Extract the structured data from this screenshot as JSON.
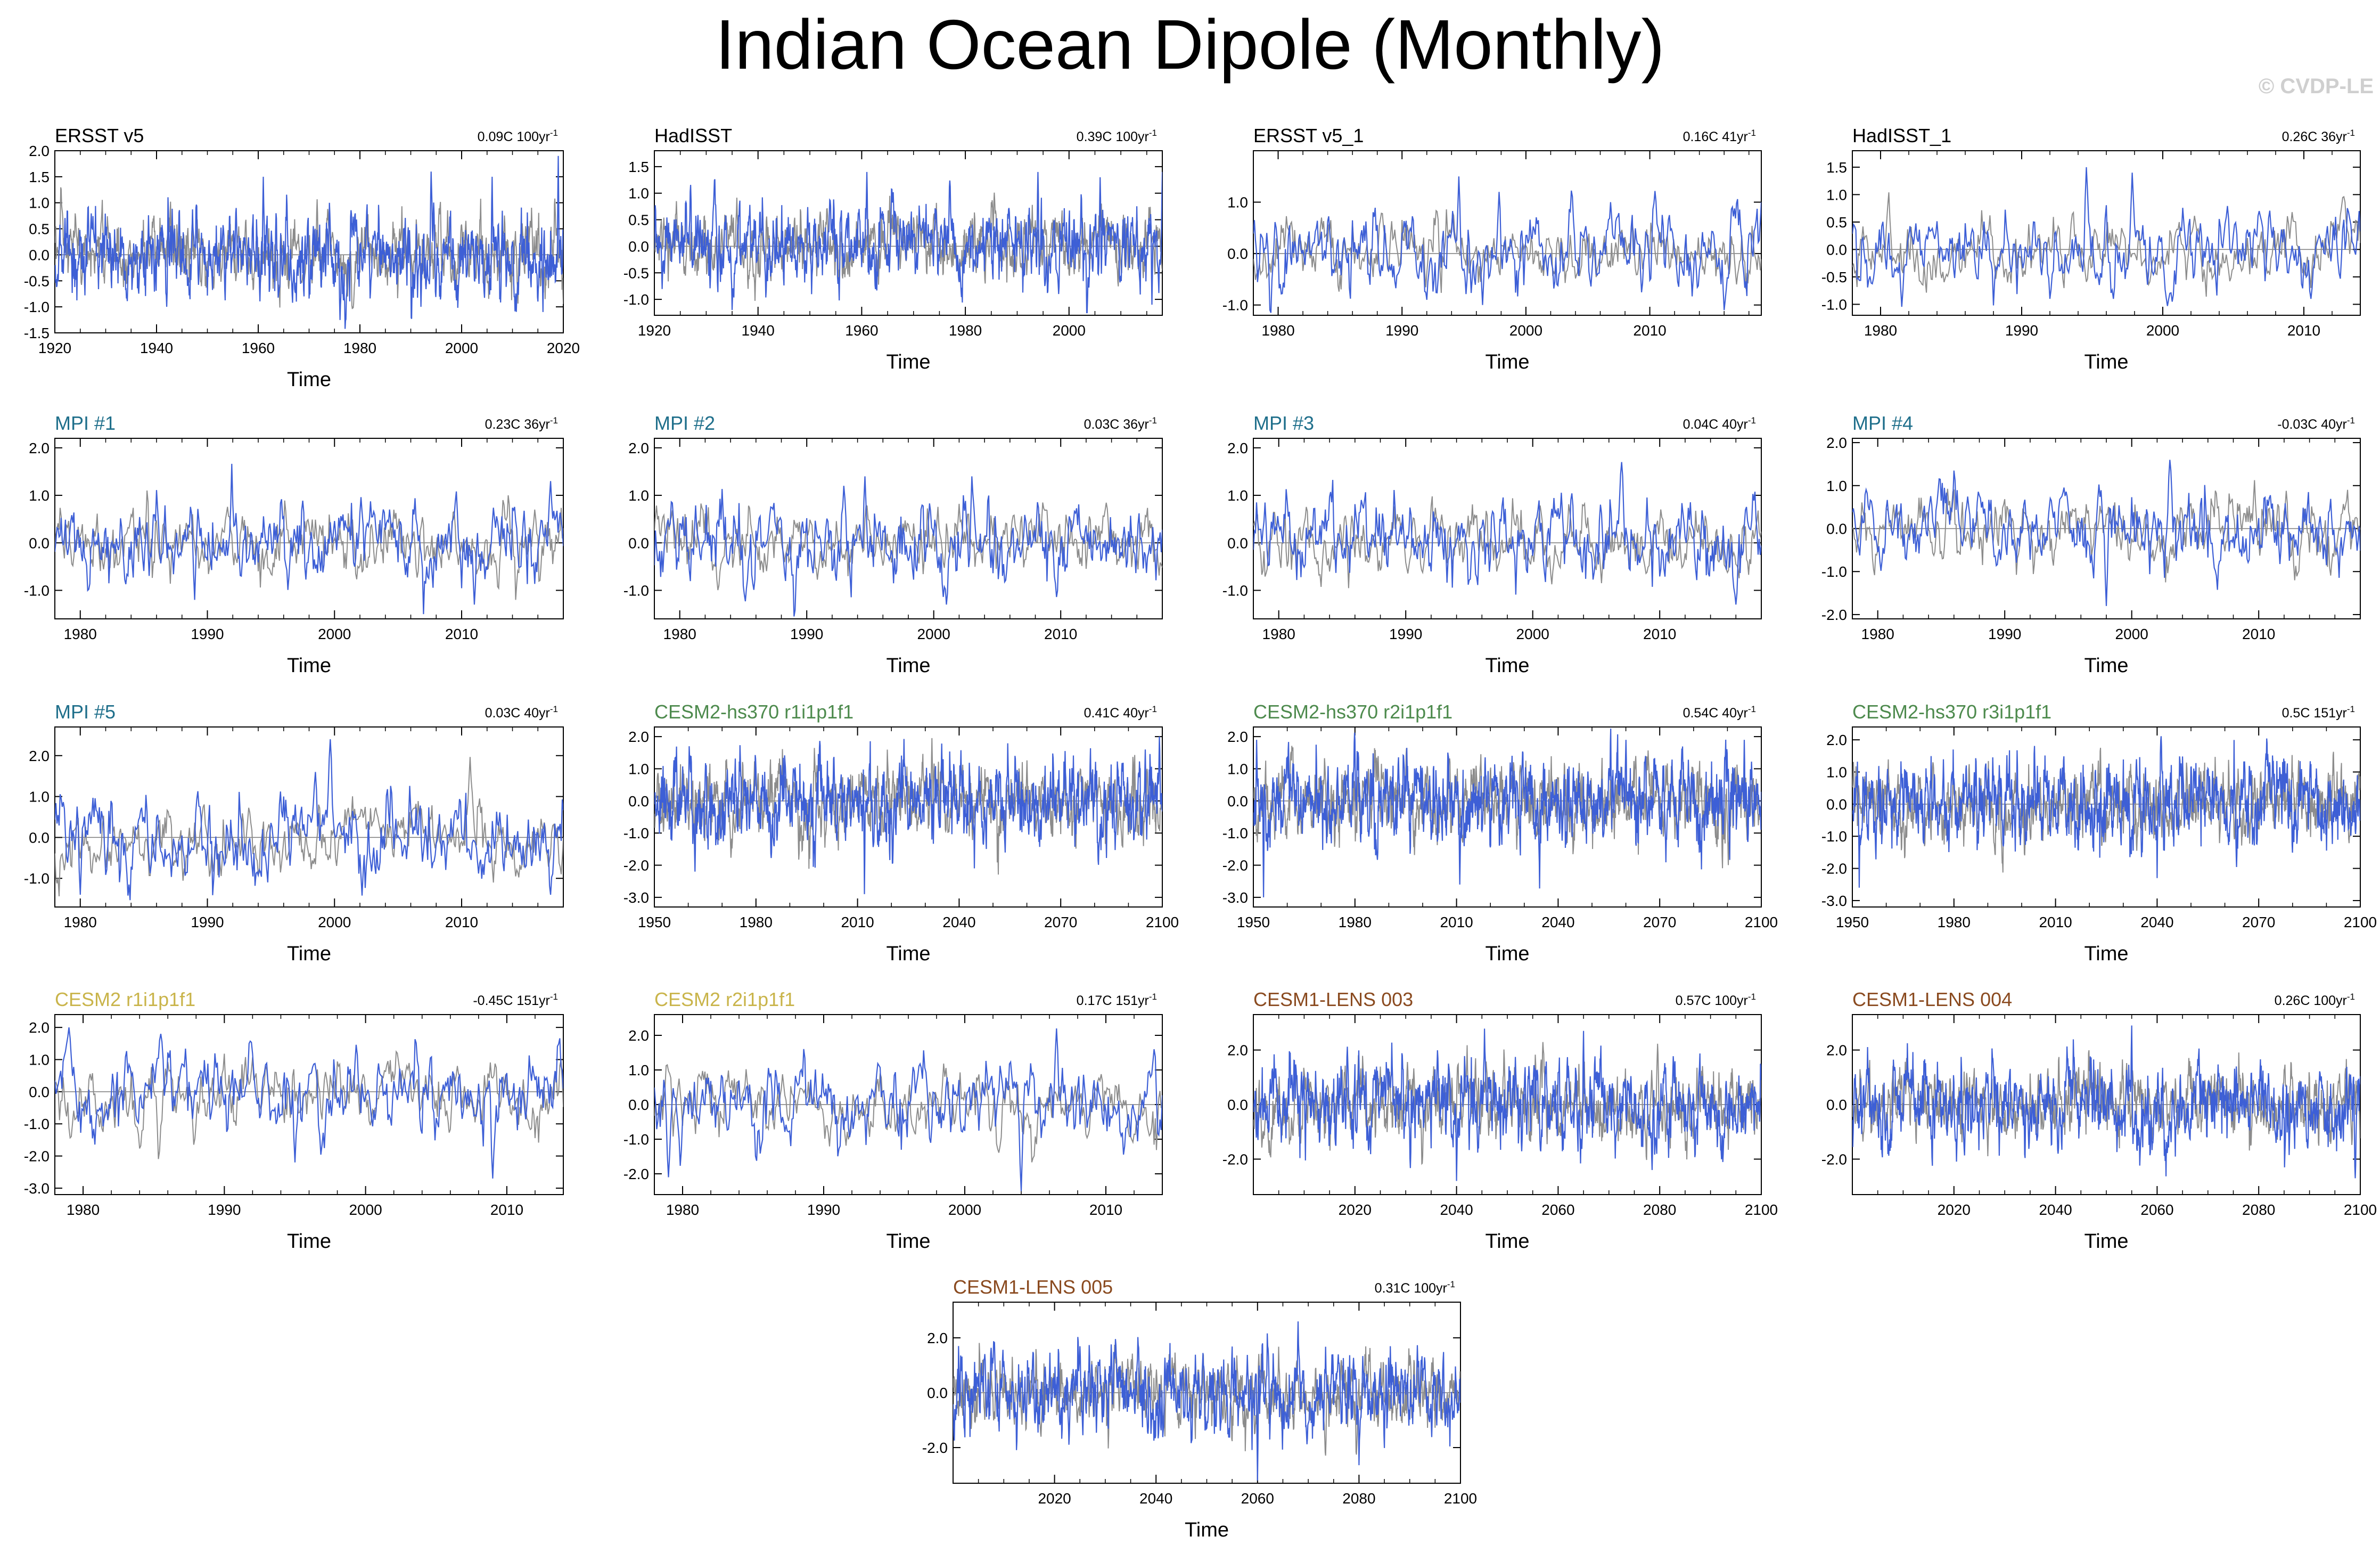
{
  "title": "Indian Ocean Dipole (Monthly)",
  "watermark": "© CVDP-LE",
  "colors": {
    "model_line": "#3d5fd6",
    "obs_line": "#8c8c8c",
    "zero_line": "#7a7a7a"
  },
  "chart_data": [
    {
      "type": "line",
      "title": "ERSST v5",
      "title_color": "#000000",
      "trend": "0.09C 100yr",
      "trend_exp": "-1",
      "xlabel": "Time",
      "xlim": [
        1920,
        2020
      ],
      "xticks": [
        1920,
        1940,
        1960,
        1980,
        2000,
        2020
      ],
      "ylim": [
        -1.5,
        2.0
      ],
      "yticks": [
        "2.0",
        "1.5",
        "1.0",
        "0.5",
        "0.0",
        "-0.5",
        "-1.0",
        "-1.5"
      ],
      "peaks": [
        [
          1961,
          1.5
        ],
        [
          1994,
          1.6
        ],
        [
          2006,
          1.5
        ],
        [
          2019,
          1.9
        ]
      ],
      "troughs": [
        [
          1942,
          -1.0
        ],
        [
          1992,
          -1.0
        ],
        [
          2016,
          -1.1
        ]
      ]
    },
    {
      "type": "line",
      "title": "HadISST",
      "title_color": "#000000",
      "trend": "0.39C 100yr",
      "trend_exp": "-1",
      "xlabel": "Time",
      "xlim": [
        1920,
        2018
      ],
      "xticks": [
        1920,
        1940,
        1960,
        1980,
        2000
      ],
      "ylim": [
        -1.3,
        1.8
      ],
      "yticks": [
        "1.5",
        "1.0",
        "0.5",
        "0.0",
        "-0.5",
        "-1.0"
      ],
      "peaks": [
        [
          1961,
          1.4
        ],
        [
          1994,
          1.4
        ],
        [
          2006,
          1.3
        ],
        [
          2019,
          1.4
        ]
      ],
      "troughs": [
        [
          1935,
          -1.2
        ],
        [
          1998,
          -0.9
        ],
        [
          2016,
          -1.1
        ]
      ]
    },
    {
      "type": "line",
      "title": "ERSST v5_1",
      "title_color": "#000000",
      "trend": "0.16C 41yr",
      "trend_exp": "-1",
      "xlabel": "Time",
      "xlim": [
        1978,
        2019
      ],
      "xticks": [
        1980,
        1990,
        2000,
        2010
      ],
      "ylim": [
        -1.2,
        2.0
      ],
      "yticks": [
        "1.0",
        "0.0",
        "-1.0"
      ],
      "peaks": [
        [
          1994.6,
          1.5
        ],
        [
          1997.8,
          1.2
        ],
        [
          2006.8,
          1.0
        ],
        [
          2019,
          1.0
        ]
      ],
      "troughs": [
        [
          1992,
          -0.9
        ],
        [
          1996.5,
          -1.0
        ],
        [
          2016,
          -1.1
        ]
      ]
    },
    {
      "type": "line",
      "title": "HadISST_1",
      "title_color": "#000000",
      "trend": "0.26C 36yr",
      "trend_exp": "-1",
      "xlabel": "Time",
      "xlim": [
        1978,
        2014
      ],
      "xticks": [
        1980,
        1990,
        2000,
        2010
      ],
      "ylim": [
        -1.2,
        1.8
      ],
      "yticks": [
        "1.5",
        "1.0",
        "0.5",
        "0.0",
        "-0.5",
        "-1.0"
      ],
      "peaks": [
        [
          1994.6,
          1.5
        ],
        [
          1997.8,
          1.4
        ],
        [
          2006.8,
          0.7
        ]
      ],
      "troughs": [
        [
          1992,
          -0.9
        ],
        [
          1996.5,
          -0.9
        ],
        [
          2010.5,
          -0.9
        ]
      ]
    },
    {
      "type": "line",
      "title": "MPI #1",
      "title_color": "#1f6f8b",
      "trend": "0.23C 36yr",
      "trend_exp": "-1",
      "xlabel": "Time",
      "xlim": [
        1978,
        2018
      ],
      "xticks": [
        1980,
        1990,
        2000,
        2010
      ],
      "ylim": [
        -1.6,
        2.2
      ],
      "yticks": [
        "2.0",
        "1.0",
        "0.0",
        "-1.0"
      ],
      "peaks": [
        [
          2017,
          1.3
        ]
      ],
      "troughs": [
        [
          1989,
          -1.2
        ],
        [
          2011,
          -1.3
        ]
      ]
    },
    {
      "type": "line",
      "title": "MPI #2",
      "title_color": "#1f6f8b",
      "trend": "0.03C 36yr",
      "trend_exp": "-1",
      "xlabel": "Time",
      "xlim": [
        1978,
        2018
      ],
      "xticks": [
        1980,
        1990,
        2000,
        2010
      ],
      "ylim": [
        -1.6,
        2.2
      ],
      "yticks": [
        "2.0",
        "1.0",
        "0.0",
        "-1.0"
      ],
      "peaks": [
        [
          1994.6,
          1.4
        ],
        [
          2003,
          1.4
        ]
      ],
      "troughs": [
        [
          2001,
          -1.3
        ]
      ]
    },
    {
      "type": "line",
      "title": "MPI #3",
      "title_color": "#1f6f8b",
      "trend": "0.04C 40yr",
      "trend_exp": "-1",
      "xlabel": "Time",
      "xlim": [
        1978,
        2018
      ],
      "xticks": [
        1980,
        1990,
        2000,
        2010
      ],
      "ylim": [
        -1.6,
        2.2
      ],
      "yticks": [
        "2.0",
        "1.0",
        "0.0",
        "-1.0"
      ],
      "peaks": [
        [
          2007,
          1.7
        ]
      ],
      "troughs": [
        [
          2016,
          -1.3
        ]
      ]
    },
    {
      "type": "line",
      "title": "MPI #4",
      "title_color": "#1f6f8b",
      "trend": "-0.03C 40yr",
      "trend_exp": "-1",
      "xlabel": "Time",
      "xlim": [
        1978,
        2018
      ],
      "xticks": [
        1980,
        1990,
        2000,
        2010
      ],
      "ylim": [
        -2.1,
        2.1
      ],
      "yticks": [
        "2.0",
        "1.0",
        "0.0",
        "-1.0",
        "-2.0"
      ],
      "peaks": [
        [
          2003,
          1.6
        ]
      ],
      "troughs": [
        [
          1998,
          -1.8
        ]
      ]
    },
    {
      "type": "line",
      "title": "MPI #5",
      "title_color": "#1f6f8b",
      "trend": "0.03C 40yr",
      "trend_exp": "-1",
      "xlabel": "Time",
      "xlim": [
        1978,
        2018
      ],
      "xticks": [
        1980,
        1990,
        2000,
        2010
      ],
      "ylim": [
        -1.7,
        2.7
      ],
      "yticks": [
        "2.0",
        "1.0",
        "0.0",
        "-1.0"
      ],
      "peaks": [
        [
          1999.7,
          2.4
        ],
        [
          1998.5,
          1.6
        ]
      ],
      "troughs": [
        [
          1980,
          -1.4
        ],
        [
          2017,
          -1.4
        ]
      ]
    },
    {
      "type": "line",
      "title": "CESM2-hs370 r1i1p1f1",
      "title_color": "#4d8a4d",
      "trend": "0.41C 40yr",
      "trend_exp": "-1",
      "xlabel": "Time",
      "xlim": [
        1950,
        2100
      ],
      "xticks": [
        1950,
        1980,
        2010,
        2040,
        2070,
        2100
      ],
      "ylim": [
        -3.3,
        2.3
      ],
      "yticks": [
        "2.0",
        "1.0",
        "0.0",
        "-1.0",
        "-2.0",
        "-3.0"
      ],
      "peaks": [
        [
          2095,
          1.6
        ]
      ],
      "troughs": [
        [
          2012,
          -2.9
        ],
        [
          1962,
          -2.2
        ]
      ]
    },
    {
      "type": "line",
      "title": "CESM2-hs370 r2i1p1f1",
      "title_color": "#4d8a4d",
      "trend": "0.54C 40yr",
      "trend_exp": "-1",
      "xlabel": "Time",
      "xlim": [
        1950,
        2100
      ],
      "xticks": [
        1950,
        1980,
        2010,
        2040,
        2070,
        2100
      ],
      "ylim": [
        -3.3,
        2.3
      ],
      "yticks": [
        "2.0",
        "1.0",
        "0.0",
        "-1.0",
        "-2.0",
        "-3.0"
      ],
      "peaks": [
        [
          1951,
          1.9
        ],
        [
          2060,
          1.9
        ],
        [
          2095,
          1.9
        ]
      ],
      "troughs": [
        [
          1953,
          -3.0
        ],
        [
          2011,
          -2.6
        ]
      ]
    },
    {
      "type": "line",
      "title": "CESM2-hs370 r3i1p1f1",
      "title_color": "#4d8a4d",
      "trend": "0.5C 151yr",
      "trend_exp": "-1",
      "xlabel": "Time",
      "xlim": [
        1950,
        2100
      ],
      "xticks": [
        1950,
        1980,
        2010,
        2040,
        2070,
        2100
      ],
      "ylim": [
        -3.2,
        2.4
      ],
      "yticks": [
        "2.0",
        "1.0",
        "0.0",
        "-1.0",
        "-2.0",
        "-3.0"
      ],
      "peaks": [
        [
          2040,
          2.3
        ]
      ],
      "troughs": [
        [
          1952,
          -2.6
        ],
        [
          2040,
          -2.3
        ]
      ]
    },
    {
      "type": "line",
      "title": "CESM2 r1i1p1f1",
      "title_color": "#c9b44a",
      "trend": "-0.45C 151yr",
      "trend_exp": "-1",
      "xlabel": "Time",
      "xlim": [
        1978,
        2014
      ],
      "xticks": [
        1980,
        1990,
        2000,
        2010
      ],
      "ylim": [
        -3.2,
        2.4
      ],
      "yticks": [
        "2.0",
        "1.0",
        "0.0",
        "-1.0",
        "-2.0",
        "-3.0"
      ],
      "peaks": [
        [
          1979,
          2.0
        ],
        [
          1985.5,
          1.8
        ]
      ],
      "troughs": [
        [
          1995,
          -2.2
        ],
        [
          2009,
          -2.7
        ]
      ]
    },
    {
      "type": "line",
      "title": "CESM2 r2i1p1f1",
      "title_color": "#c9b44a",
      "trend": "0.17C 151yr",
      "trend_exp": "-1",
      "xlabel": "Time",
      "xlim": [
        1978,
        2014
      ],
      "xticks": [
        1980,
        1990,
        2000,
        2010
      ],
      "ylim": [
        -2.6,
        2.6
      ],
      "yticks": [
        "2.0",
        "1.0",
        "0.0",
        "-1.0",
        "-2.0"
      ],
      "peaks": [
        [
          2006.5,
          2.2
        ]
      ],
      "troughs": [
        [
          1979,
          -2.1
        ],
        [
          2004,
          -2.5
        ]
      ]
    },
    {
      "type": "line",
      "title": "CESM1-LENS 003",
      "title_color": "#8a4a1f",
      "trend": "0.57C 100yr",
      "trend_exp": "-1",
      "xlabel": "Time",
      "xlim": [
        2000,
        2100
      ],
      "xticks": [
        2020,
        2040,
        2060,
        2080,
        2100
      ],
      "ylim": [
        -3.3,
        3.3
      ],
      "yticks": [
        "2.0",
        "0.0",
        "-2.0"
      ],
      "peaks": [
        [
          2065,
          2.7
        ]
      ],
      "troughs": [
        [
          2040,
          -2.8
        ]
      ]
    },
    {
      "type": "line",
      "title": "CESM1-LENS 004",
      "title_color": "#8a4a1f",
      "trend": "0.26C 100yr",
      "trend_exp": "-1",
      "xlabel": "Time",
      "xlim": [
        2000,
        2100
      ],
      "xticks": [
        2020,
        2040,
        2060,
        2080,
        2100
      ],
      "ylim": [
        -3.3,
        3.3
      ],
      "yticks": [
        "2.0",
        "0.0",
        "-2.0"
      ],
      "peaks": [
        [
          2055,
          2.9
        ]
      ],
      "troughs": [
        [
          2099,
          -2.7
        ]
      ]
    },
    {
      "type": "line",
      "title": "CESM1-LENS 005",
      "title_color": "#8a4a1f",
      "trend": "0.31C 100yr",
      "trend_exp": "-1",
      "xlabel": "Time",
      "xlim": [
        2000,
        2100
      ],
      "xticks": [
        2020,
        2040,
        2060,
        2080,
        2100
      ],
      "ylim": [
        -3.3,
        3.3
      ],
      "yticks": [
        "2.0",
        "0.0",
        "-2.0"
      ],
      "peaks": [
        [
          2068,
          2.6
        ]
      ],
      "troughs": [
        [
          2060,
          -3.2
        ]
      ]
    }
  ]
}
